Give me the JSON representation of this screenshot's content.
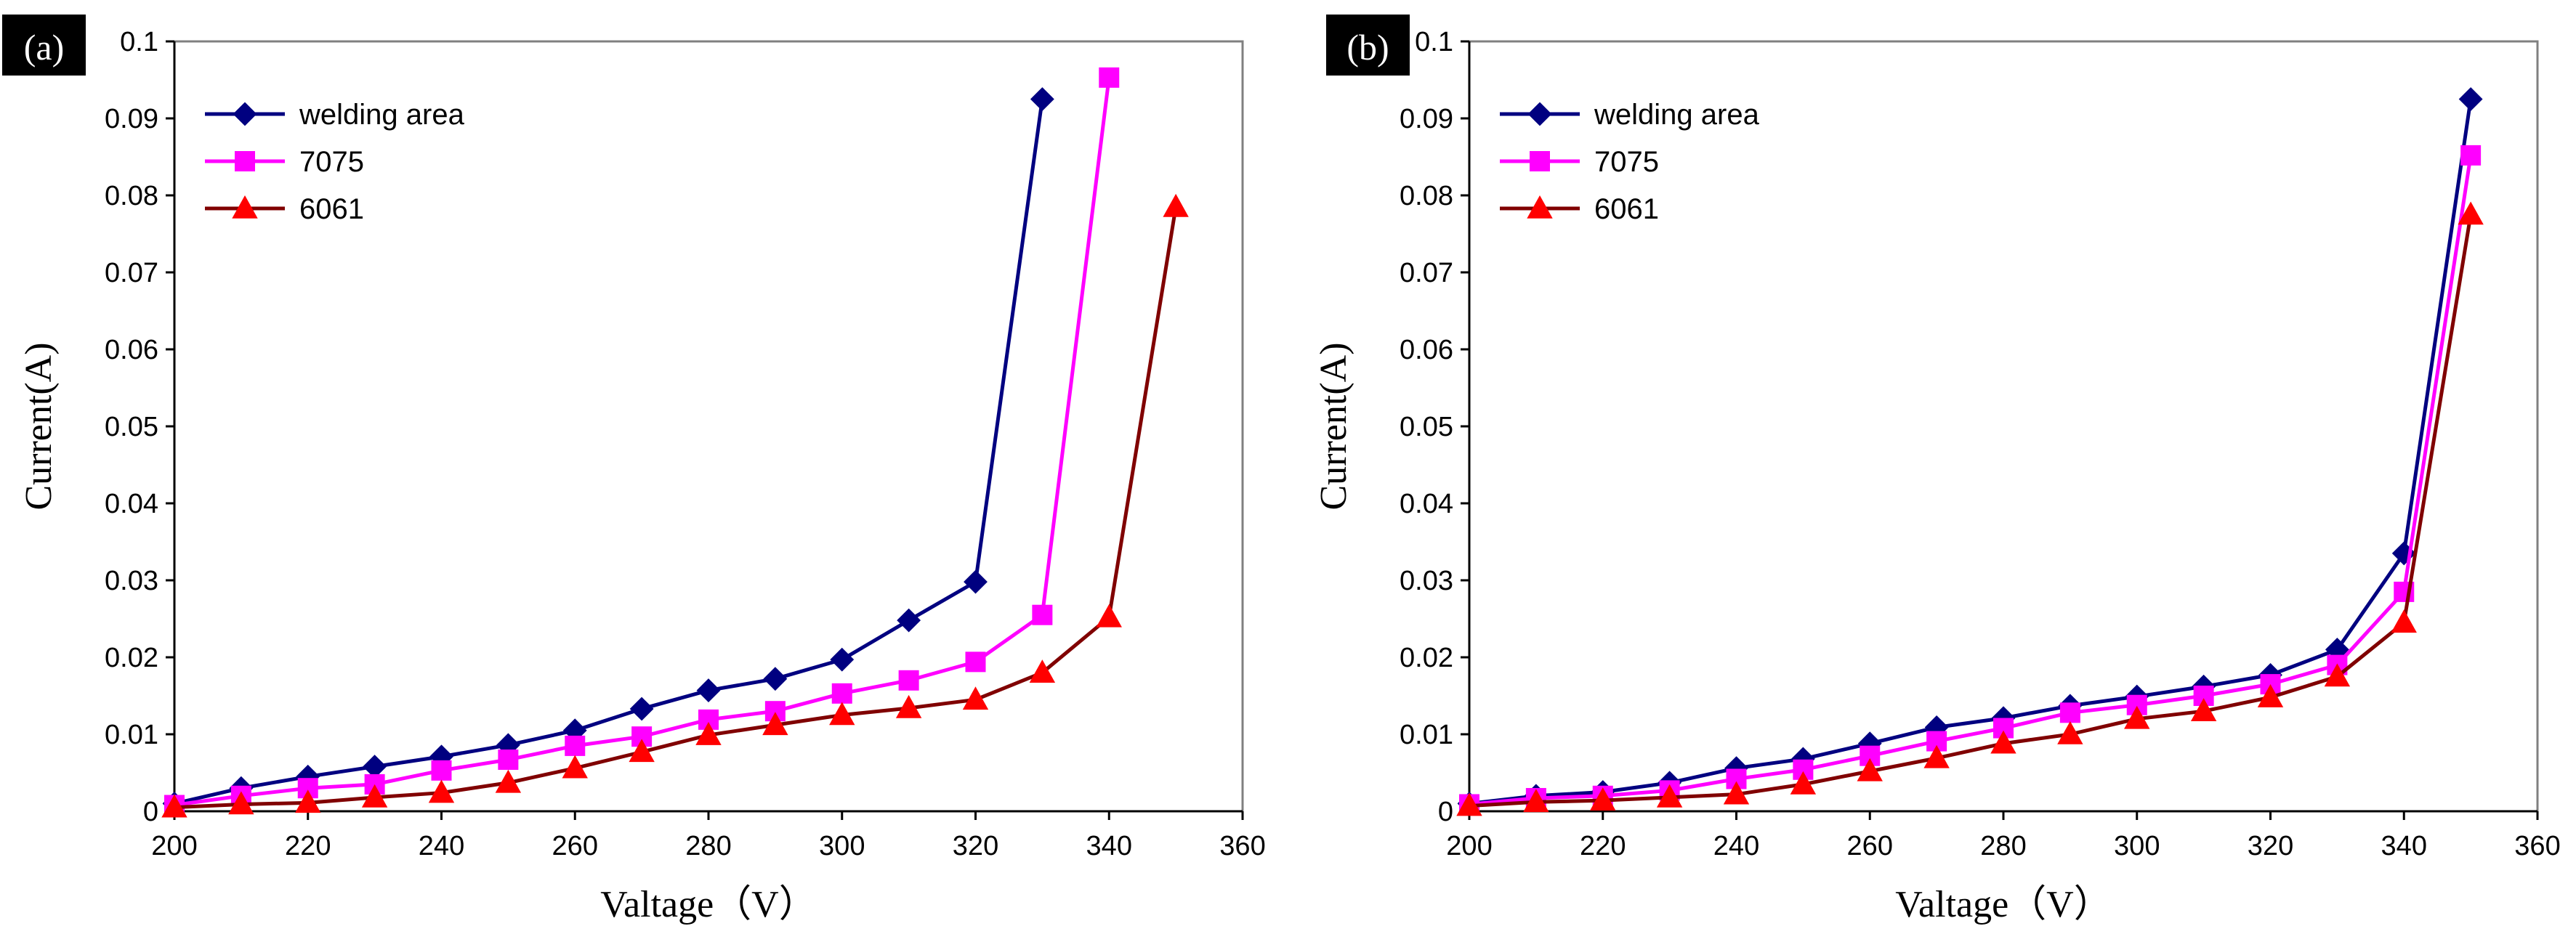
{
  "chart_data": [
    {
      "type": "line",
      "panel_label": "(a)",
      "xlabel": "Valtage（V）",
      "ylabel": "Current(A)",
      "xlim": [
        200,
        360
      ],
      "ylim": [
        0,
        0.1
      ],
      "x_ticks": [
        "200",
        "220",
        "240",
        "260",
        "280",
        "300",
        "320",
        "340",
        "360"
      ],
      "y_ticks": [
        "0",
        "0.01",
        "0.02",
        "0.03",
        "0.04",
        "0.05",
        "0.06",
        "0.07",
        "0.08",
        "0.09",
        "0.1"
      ],
      "legend_position": "top-left",
      "grid": false,
      "series": [
        {
          "name": "welding area",
          "color": "#000080",
          "marker": "diamond",
          "x": [
            200,
            210,
            220,
            230,
            240,
            250,
            260,
            270,
            280,
            290,
            300,
            310,
            320,
            330
          ],
          "y": [
            0.001,
            0.003,
            0.0045,
            0.0058,
            0.0071,
            0.0086,
            0.0105,
            0.0133,
            0.0157,
            0.0172,
            0.0197,
            0.0248,
            0.0298,
            0.0925
          ]
        },
        {
          "name": "7075",
          "color": "#FF00FF",
          "marker": "square",
          "x": [
            200,
            210,
            220,
            230,
            240,
            250,
            260,
            270,
            280,
            290,
            300,
            310,
            320,
            330,
            340
          ],
          "y": [
            0.0008,
            0.002,
            0.003,
            0.0035,
            0.0053,
            0.0067,
            0.0085,
            0.0097,
            0.0119,
            0.013,
            0.0153,
            0.017,
            0.0194,
            0.0255,
            0.0953
          ]
        },
        {
          "name": "6061",
          "color": "#800000",
          "marker": "triangle",
          "marker_color": "#FF0000",
          "x": [
            200,
            210,
            220,
            230,
            240,
            250,
            260,
            270,
            280,
            290,
            300,
            310,
            320,
            330,
            340,
            350
          ],
          "y": [
            0.0005,
            0.0009,
            0.0011,
            0.0018,
            0.0024,
            0.0037,
            0.0056,
            0.0077,
            0.0099,
            0.0112,
            0.0125,
            0.0134,
            0.0145,
            0.018,
            0.0252,
            0.0785
          ]
        }
      ]
    },
    {
      "type": "line",
      "panel_label": "(b)",
      "xlabel": "Valtage（V）",
      "ylabel": "Current(A)",
      "xlim": [
        200,
        360
      ],
      "ylim": [
        0,
        0.1
      ],
      "x_ticks": [
        "200",
        "220",
        "240",
        "260",
        "280",
        "300",
        "320",
        "340",
        "360"
      ],
      "y_ticks": [
        "0",
        "0.01",
        "0.02",
        "0.03",
        "0.04",
        "0.05",
        "0.06",
        "0.07",
        "0.08",
        "0.09",
        "0.1"
      ],
      "legend_position": "top-left",
      "grid": false,
      "series": [
        {
          "name": "welding area",
          "color": "#000080",
          "marker": "diamond",
          "x": [
            200,
            210,
            220,
            230,
            240,
            250,
            260,
            270,
            280,
            290,
            300,
            310,
            320,
            330,
            340,
            350
          ],
          "y": [
            0.001,
            0.002,
            0.0025,
            0.0037,
            0.0056,
            0.0068,
            0.0088,
            0.0109,
            0.0121,
            0.0137,
            0.0149,
            0.0162,
            0.0177,
            0.021,
            0.0335,
            0.0925
          ]
        },
        {
          "name": "7075",
          "color": "#FF00FF",
          "marker": "square",
          "x": [
            200,
            210,
            220,
            230,
            240,
            250,
            260,
            270,
            280,
            290,
            300,
            310,
            320,
            330,
            340,
            350
          ],
          "y": [
            0.0009,
            0.0017,
            0.002,
            0.0027,
            0.0042,
            0.0054,
            0.0072,
            0.0091,
            0.0108,
            0.0128,
            0.0138,
            0.015,
            0.0165,
            0.019,
            0.0285,
            0.0852
          ]
        },
        {
          "name": "6061",
          "color": "#800000",
          "marker": "triangle",
          "marker_color": "#FF0000",
          "x": [
            200,
            210,
            220,
            230,
            240,
            250,
            260,
            270,
            280,
            290,
            300,
            310,
            320,
            330,
            340,
            350
          ],
          "y": [
            0.0007,
            0.0012,
            0.0014,
            0.0018,
            0.0022,
            0.0035,
            0.0052,
            0.0069,
            0.0088,
            0.01,
            0.012,
            0.013,
            0.0148,
            0.0175,
            0.0245,
            0.0775
          ]
        }
      ]
    }
  ]
}
